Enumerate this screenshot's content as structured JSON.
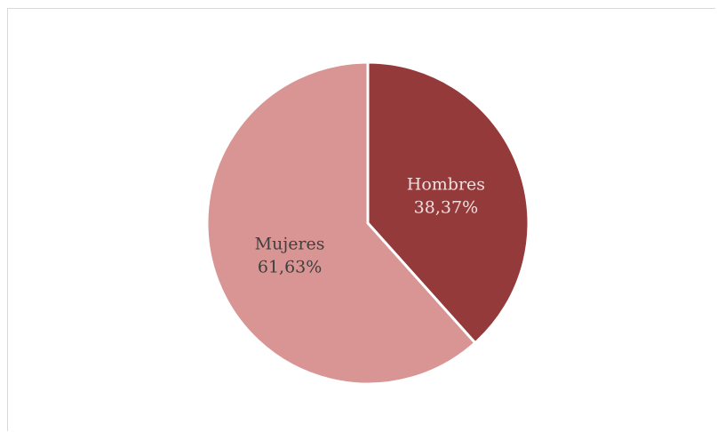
{
  "chart_data": {
    "type": "pie",
    "title": "",
    "slices": [
      {
        "label": "Hombres",
        "value": 38.37,
        "value_label": "38,37%",
        "color": "#953a3a",
        "text_color": "#f3dede"
      },
      {
        "label": "Mujeres",
        "value": 61.63,
        "value_label": "61,63%",
        "color": "#d99594",
        "text_color": "#3f3f3f"
      }
    ],
    "start_angle_deg": 0,
    "direction": "clockwise",
    "legend": "none",
    "slice_border_color": "#ffffff"
  }
}
